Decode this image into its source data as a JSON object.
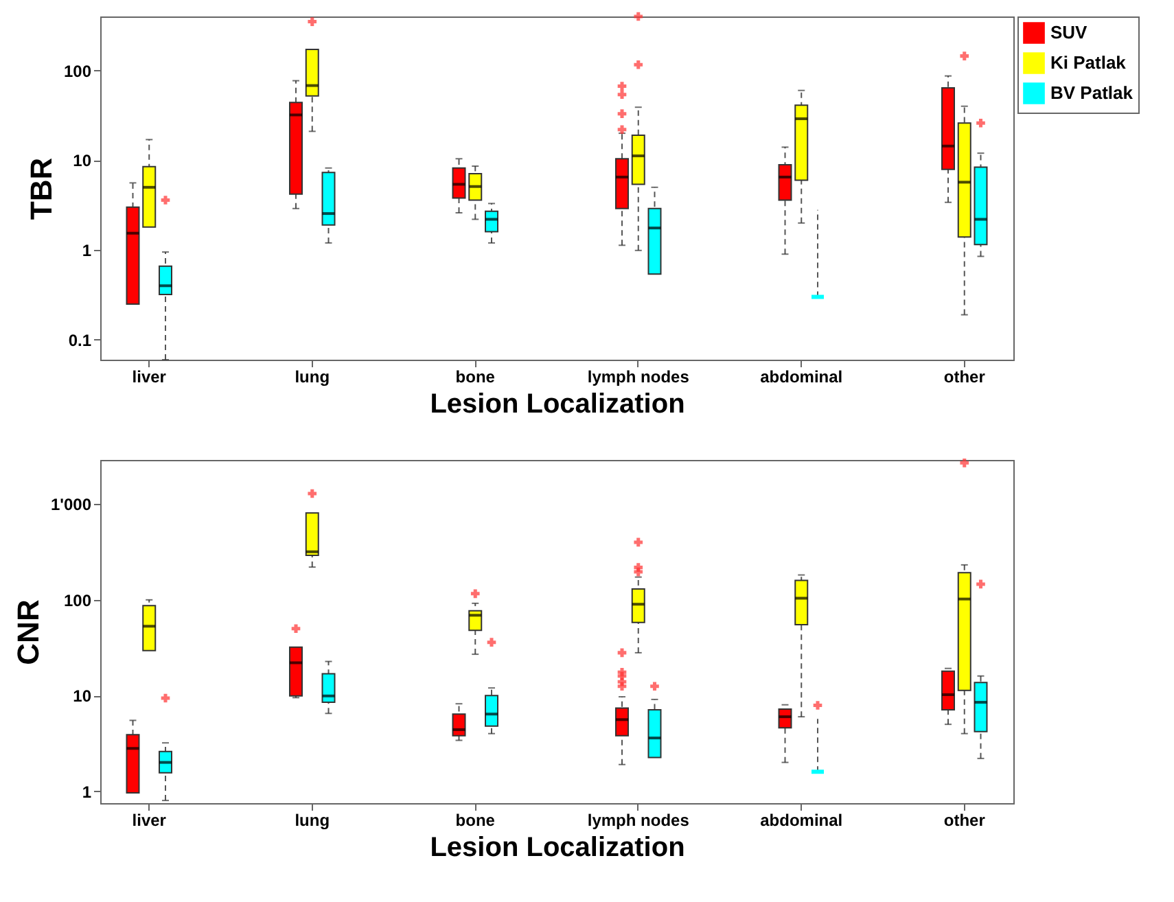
{
  "chart_data": [
    {
      "type": "box",
      "xlabel": "Lesion Localization",
      "ylabel": "TBR",
      "log": true,
      "legend": "top right",
      "ylim": [
        0.06,
        400
      ],
      "yticks": [
        0.1,
        1,
        10,
        100
      ],
      "categories": [
        "liver",
        "lung",
        "bone",
        "lymph nodes",
        "abdominal",
        "other"
      ],
      "series": [
        {
          "name": "SUV",
          "color": "#ff0000",
          "boxes": [
            {
              "low": 0.25,
              "q1": 0.25,
              "median": 1.54,
              "q3": 3.0,
              "high": 5.6
            },
            {
              "low": 2.9,
              "q1": 4.2,
              "median": 32,
              "q3": 44,
              "high": 77
            },
            {
              "low": 2.6,
              "q1": 3.8,
              "median": 5.4,
              "q3": 8.2,
              "high": 10.4
            },
            {
              "low": 1.13,
              "q1": 2.9,
              "median": 6.5,
              "q3": 10.4,
              "high": 20,
              "outliers": [
                22,
                33,
                54,
                67
              ]
            },
            {
              "low": 0.9,
              "q1": 3.6,
              "median": 6.5,
              "q3": 8.9,
              "high": 14
            },
            {
              "low": 3.4,
              "q1": 7.9,
              "median": 14.4,
              "q3": 64,
              "high": 87
            }
          ]
        },
        {
          "name": "Ki Patlak",
          "color": "#ffff00",
          "boxes": [
            {
              "low": 1.8,
              "q1": 1.8,
              "median": 5.0,
              "q3": 8.5,
              "high": 17
            },
            {
              "low": 21,
              "q1": 52,
              "median": 68,
              "q3": 172,
              "high": 172,
              "outliers": [
                350
              ]
            },
            {
              "low": 2.2,
              "q1": 3.6,
              "median": 5.1,
              "q3": 7.1,
              "high": 8.6
            },
            {
              "low": 0.99,
              "q1": 5.4,
              "median": 11.2,
              "q3": 19,
              "high": 39,
              "outliers": [
                116,
                400
              ]
            },
            {
              "low": 2.0,
              "q1": 6.0,
              "median": 29,
              "q3": 41,
              "high": 60
            },
            {
              "low": 0.19,
              "q1": 1.4,
              "median": 5.7,
              "q3": 26,
              "high": 40,
              "outliers": [
                145
              ]
            }
          ]
        },
        {
          "name": "BV Patlak",
          "color": "#00ffff",
          "boxes": [
            {
              "low": 0.06,
              "q1": 0.32,
              "median": 0.4,
              "q3": 0.66,
              "high": 0.95,
              "outliers": [
                3.6
              ]
            },
            {
              "low": 1.2,
              "q1": 1.9,
              "median": 2.55,
              "q3": 7.3,
              "high": 8.2
            },
            {
              "low": 1.2,
              "q1": 1.6,
              "median": 2.2,
              "q3": 2.7,
              "high": 3.3
            },
            {
              "low": 0.54,
              "q1": 0.54,
              "median": 1.76,
              "q3": 2.9,
              "high": 5.0
            },
            {
              "low": 0.3,
              "q1": 0.3,
              "median": 0.3,
              "q3": 0.3,
              "high": 2.8
            },
            {
              "low": 0.85,
              "q1": 1.15,
              "median": 2.2,
              "q3": 8.4,
              "high": 12,
              "outliers": [
                26
              ]
            }
          ]
        }
      ]
    },
    {
      "type": "box",
      "xlabel": "Lesion Localization",
      "ylabel": "CNR",
      "log": true,
      "legend": "top right",
      "ylim": [
        0.75,
        2900
      ],
      "yticks": [
        1,
        10,
        100,
        {
          "value": 1000,
          "label": "1'000"
        }
      ],
      "categories": [
        "liver",
        "lung",
        "bone",
        "lymph nodes",
        "abdominal",
        "other"
      ],
      "series": [
        {
          "name": "SUV",
          "color": "#ff0000",
          "boxes": [
            {
              "low": 0.96,
              "q1": 0.96,
              "median": 2.8,
              "q3": 3.9,
              "high": 5.5
            },
            {
              "low": 9.5,
              "q1": 9.9,
              "median": 22,
              "q3": 32,
              "high": 32,
              "outliers": [
                50
              ]
            },
            {
              "low": 3.4,
              "q1": 3.8,
              "median": 4.4,
              "q3": 6.4,
              "high": 8.2
            },
            {
              "low": 1.9,
              "q1": 3.8,
              "median": 5.6,
              "q3": 7.4,
              "high": 9.7,
              "outliers": [
                12.5,
                13.9,
                16,
                17.5,
                28
              ]
            },
            {
              "low": 2.0,
              "q1": 4.6,
              "median": 6.0,
              "q3": 7.2,
              "high": 8.0
            },
            {
              "low": 5.0,
              "q1": 7.1,
              "median": 10.2,
              "q3": 18,
              "high": 19.2
            }
          ]
        },
        {
          "name": "Ki Patlak",
          "color": "#ffff00",
          "boxes": [
            {
              "low": 29.5,
              "q1": 29.5,
              "median": 53,
              "q3": 87,
              "high": 100
            },
            {
              "low": 220,
              "q1": 292,
              "median": 318,
              "q3": 810,
              "high": 810,
              "outliers": [
                1290
              ]
            },
            {
              "low": 27,
              "q1": 48,
              "median": 69,
              "q3": 77,
              "high": 92,
              "outliers": [
                116
              ]
            },
            {
              "low": 28,
              "q1": 58,
              "median": 90,
              "q3": 130,
              "high": 173,
              "outliers": [
                196,
                218,
                400
              ]
            },
            {
              "low": 6.0,
              "q1": 55,
              "median": 104,
              "q3": 160,
              "high": 182
            },
            {
              "low": 4.0,
              "q1": 11.3,
              "median": 102,
              "q3": 192,
              "high": 232,
              "outliers": [
                2700
              ]
            }
          ]
        },
        {
          "name": "BV Patlak",
          "color": "#00ffff",
          "boxes": [
            {
              "low": 0.8,
              "q1": 1.56,
              "median": 2.0,
              "q3": 2.6,
              "high": 3.2,
              "outliers": [
                9.4
              ]
            },
            {
              "low": 6.5,
              "q1": 8.5,
              "median": 9.9,
              "q3": 16.9,
              "high": 22.7
            },
            {
              "low": 4.0,
              "q1": 4.8,
              "median": 6.4,
              "q3": 10,
              "high": 12,
              "outliers": [
                36
              ]
            },
            {
              "low": 2.25,
              "q1": 2.25,
              "median": 3.6,
              "q3": 7.1,
              "high": 9.1,
              "outliers": [
                12.5
              ]
            },
            {
              "low": 1.6,
              "q1": 1.6,
              "median": 1.6,
              "q3": 1.6,
              "high": 5.7,
              "outliers": [
                7.9
              ]
            },
            {
              "low": 2.2,
              "q1": 4.2,
              "median": 8.5,
              "q3": 13.7,
              "high": 16,
              "outliers": [
                146
              ]
            }
          ]
        }
      ]
    }
  ]
}
